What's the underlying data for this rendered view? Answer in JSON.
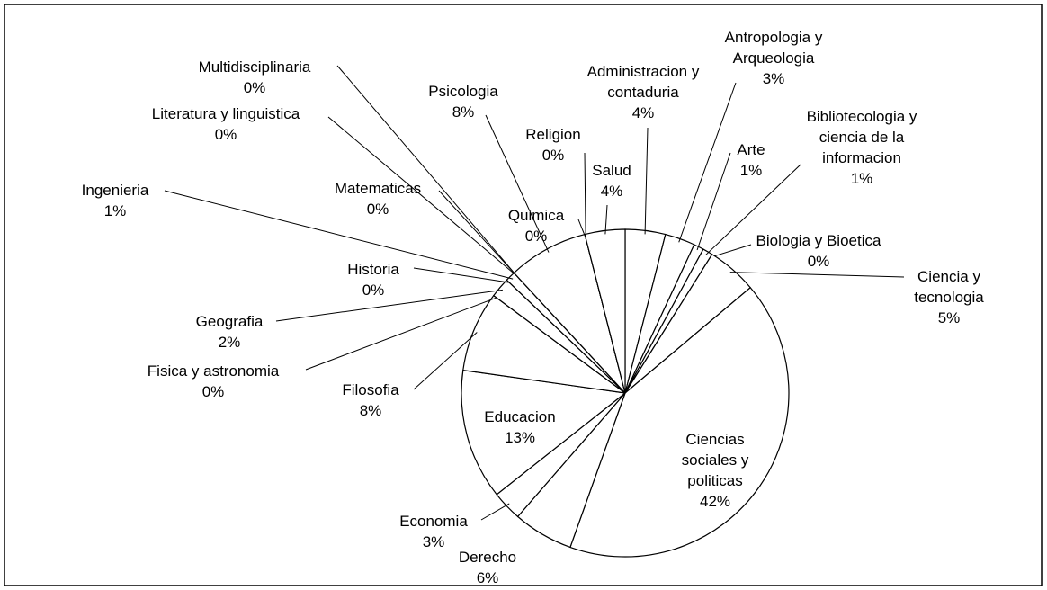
{
  "chart_data": {
    "type": "pie",
    "categories": [
      "Administracion y contaduria",
      "Antropologia y Arqueologia",
      "Arte",
      "Bibliotecologia y ciencia de la informacion",
      "Biologia y Bioetica",
      "Ciencia y tecnologia",
      "Ciencias sociales y politicas",
      "Derecho",
      "Economia",
      "Educacion",
      "Filosofia",
      "Fisica y astronomia",
      "Geografia",
      "Historia",
      "Ingenieria",
      "Literatura y linguistica",
      "Matematicas",
      "Multidisciplinaria",
      "Psicologia",
      "Quimica",
      "Religion",
      "Salud"
    ],
    "values": [
      4,
      3,
      1,
      1,
      0,
      5,
      42,
      6,
      3,
      13,
      8,
      0,
      2,
      0,
      1,
      0,
      0,
      0,
      8,
      0,
      0,
      4
    ],
    "value_labels": [
      "4%",
      "3%",
      "1%",
      "1%",
      "0%",
      "5%",
      "42%",
      "6%",
      "3%",
      "13%",
      "8%",
      "0%",
      "2%",
      "0%",
      "1%",
      "0%",
      "0%",
      "0%",
      "8%",
      "0%",
      "0%",
      "4%"
    ],
    "color": "#ffffff"
  }
}
